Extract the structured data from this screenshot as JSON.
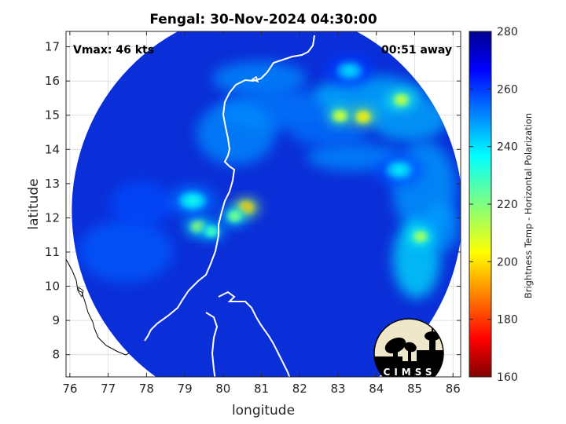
{
  "title": "Fengal: 30-Nov-2024 04:30:00",
  "annotations": {
    "vmax": "Vmax: 46 kts",
    "away": "00:51 away"
  },
  "logo": {
    "text": "CIMSS"
  },
  "colors": {
    "land_fill": "#ffffff",
    "coast_on_image": "#ffffff",
    "coast_off_image": "#000000",
    "background_field": "#0a2fd8",
    "grid": "#d9d9d9"
  },
  "chart_data": {
    "type": "heatmap",
    "title": "Fengal: 30-Nov-2024 04:30:00",
    "xlabel": "longitude",
    "ylabel": "latitude",
    "xlim": [
      75.9,
      86.2
    ],
    "ylim": [
      7.35,
      17.45
    ],
    "x_ticks": [
      76,
      77,
      78,
      79,
      80,
      81,
      82,
      83,
      84,
      85,
      86
    ],
    "y_ticks": [
      8,
      9,
      10,
      11,
      12,
      13,
      14,
      15,
      16,
      17
    ],
    "grid": true,
    "colorbar": {
      "label": "Brightness Temp - Horizontal Polarization",
      "range": [
        160,
        280
      ],
      "ticks": [
        160,
        180,
        200,
        220,
        240,
        260,
        280
      ],
      "colormap": "jet"
    },
    "swath": {
      "center_lon": 81.15,
      "center_lat": 12.2,
      "radius_lon": 5.1,
      "radius_lat": 5.9
    },
    "features": [
      {
        "lon": 79.35,
        "lat": 11.75,
        "value": 213
      },
      {
        "lon": 79.7,
        "lat": 11.6,
        "value": 225
      },
      {
        "lon": 80.6,
        "lat": 12.3,
        "value": 192
      },
      {
        "lon": 80.3,
        "lat": 12.05,
        "value": 218
      },
      {
        "lon": 79.2,
        "lat": 12.5,
        "value": 232
      },
      {
        "lon": 83.65,
        "lat": 14.95,
        "value": 198
      },
      {
        "lon": 83.05,
        "lat": 14.98,
        "value": 206
      },
      {
        "lon": 84.65,
        "lat": 15.45,
        "value": 208
      },
      {
        "lon": 85.15,
        "lat": 11.45,
        "value": 212
      },
      {
        "lon": 84.6,
        "lat": 13.4,
        "value": 235
      },
      {
        "lon": 83.3,
        "lat": 16.3,
        "value": 238
      }
    ]
  }
}
